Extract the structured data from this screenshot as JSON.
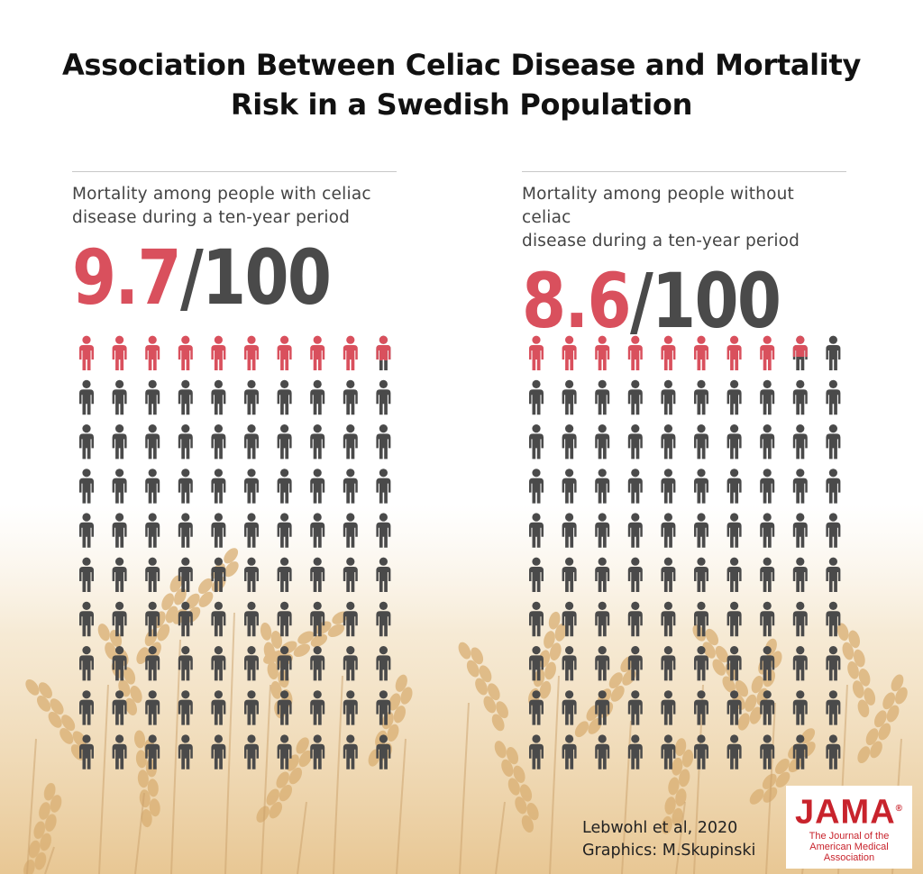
{
  "title": {
    "line1": "Association Between Celiac Disease and Mortality",
    "line2": "Risk in a Swedish Population"
  },
  "panels": [
    {
      "desc_line1": "Mortality among people with celiac",
      "desc_line2": "disease during a ten-year period",
      "numerator": "9.7",
      "denominator": "/100"
    },
    {
      "desc_line1": "Mortality among people without celiac",
      "desc_line2": "disease during a ten-year period",
      "numerator": "8.6",
      "denominator": "/100"
    }
  ],
  "credit": {
    "line1": "Lebwohl et al, 2020",
    "line2": "Graphics: M.Skupinski"
  },
  "logo": {
    "word": "JAMA",
    "reg": "®",
    "sub1": "The Journal of the",
    "sub2": "American Medical",
    "sub3": "Association"
  },
  "colors": {
    "highlight": "#d9505d",
    "neutral": "#4a4a4a",
    "logo": "#c8232c"
  },
  "chart_data": [
    {
      "type": "icon-array",
      "title": "Mortality among people with celiac disease during a ten-year period",
      "total": 100,
      "value": 9.7,
      "label": "9.7/100"
    },
    {
      "type": "icon-array",
      "title": "Mortality among people without celiac disease during a ten-year period",
      "total": 100,
      "value": 8.6,
      "label": "8.6/100"
    }
  ]
}
